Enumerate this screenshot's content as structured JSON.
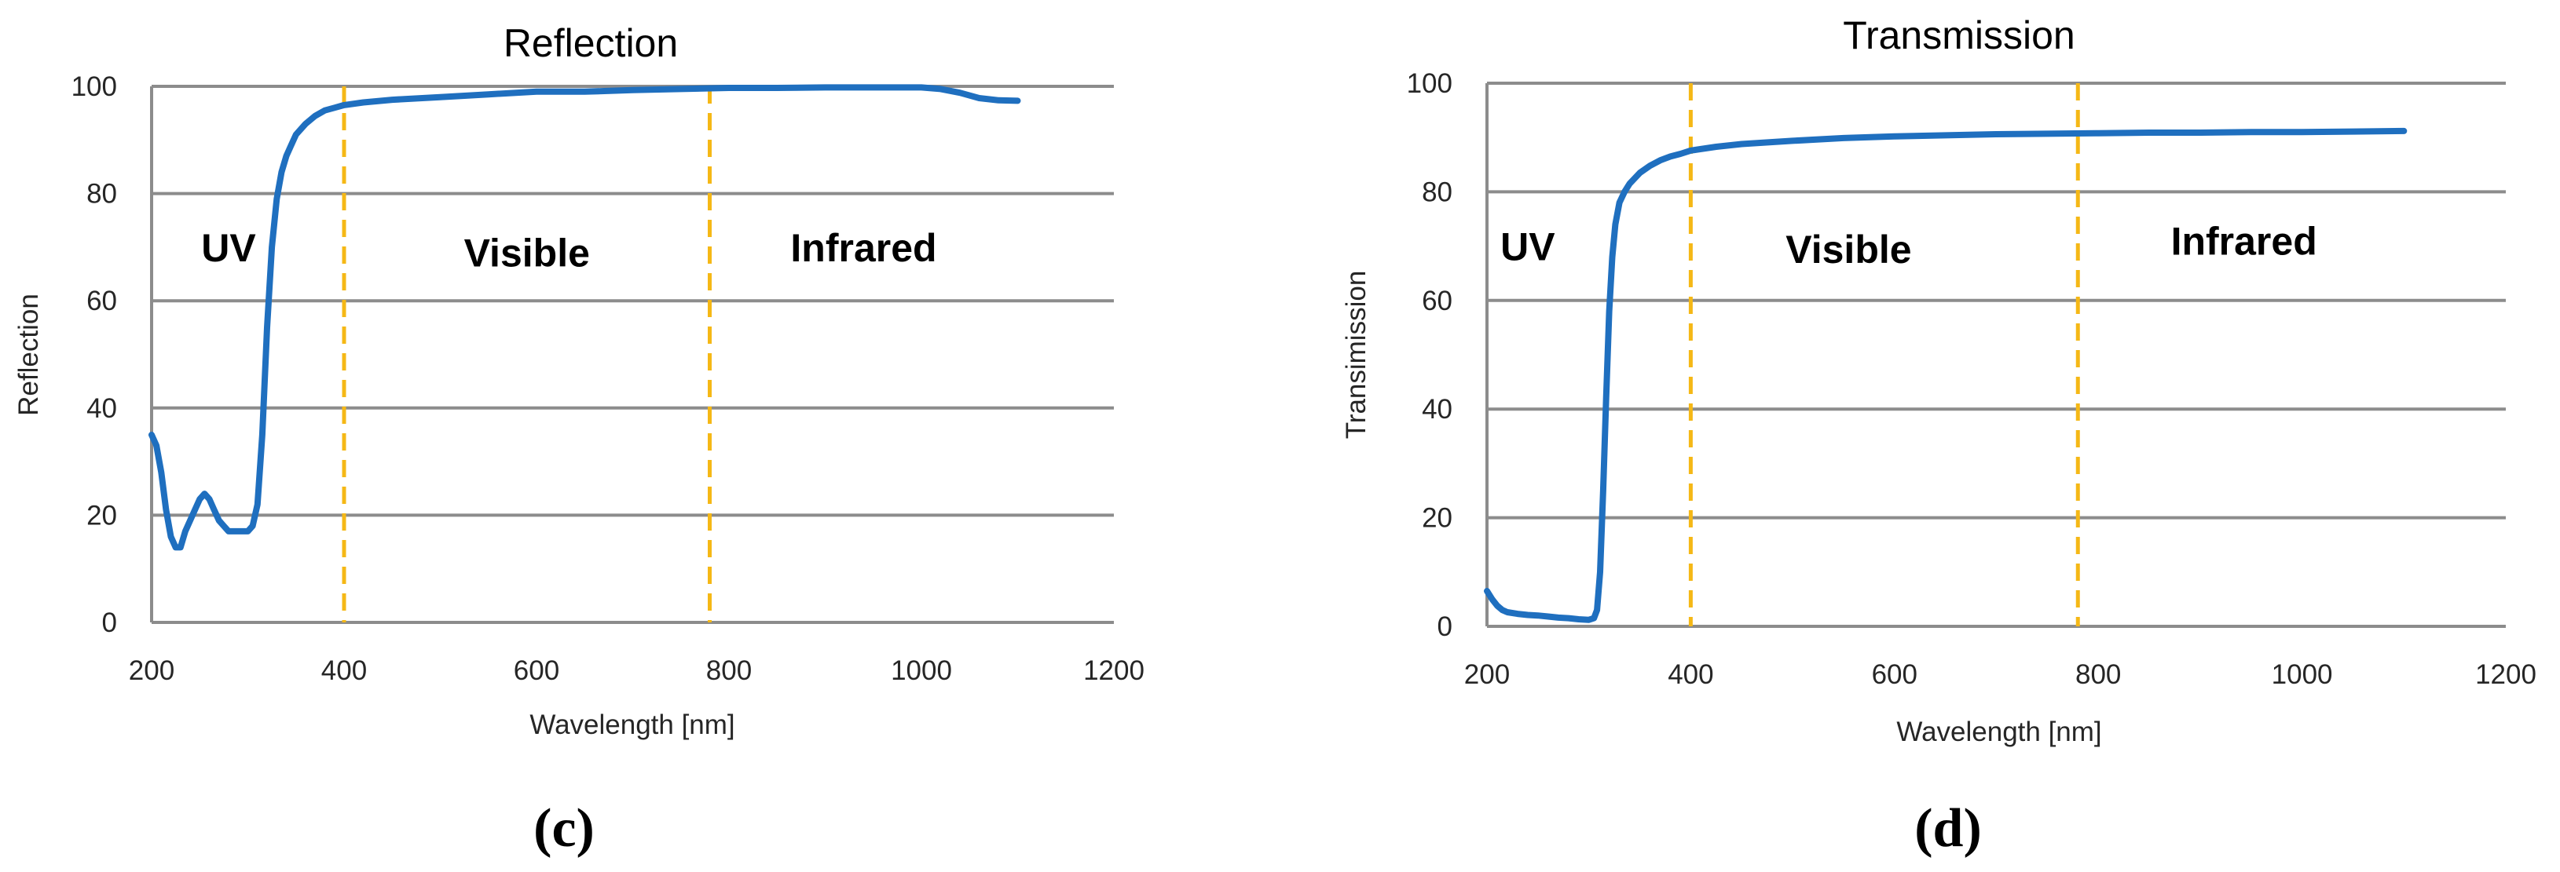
{
  "chart_data": [
    {
      "type": "line",
      "title": "Reflection",
      "xlabel": "Wavelength [nm]",
      "ylabel": "Reflection",
      "xlim": [
        200,
        1200
      ],
      "ylim": [
        0,
        100
      ],
      "xticks": [
        200,
        400,
        600,
        800,
        1000,
        1200
      ],
      "yticks": [
        0,
        20,
        40,
        60,
        80,
        100
      ],
      "grid": "horizontal",
      "colors": {
        "series": "#1f6fbf",
        "dividers": "#f5b816"
      },
      "regions": [
        {
          "label": "UV",
          "x": 280,
          "y": 70
        },
        {
          "label": "Visible",
          "x": 590,
          "y": 69
        },
        {
          "label": "Infrared",
          "x": 940,
          "y": 70
        }
      ],
      "dividers": [
        400,
        780
      ],
      "series": [
        {
          "x": [
            200,
            205,
            210,
            215,
            220,
            225,
            230,
            235,
            240,
            245,
            250,
            255,
            260,
            265,
            270,
            275,
            280,
            285,
            290,
            295,
            300,
            305,
            310,
            315,
            320,
            325,
            330,
            335,
            340,
            345,
            350,
            360,
            370,
            380,
            390,
            400,
            420,
            450,
            500,
            550,
            600,
            650,
            700,
            750,
            800,
            850,
            900,
            950,
            1000,
            1020,
            1040,
            1060,
            1080,
            1100
          ],
          "y": [
            35,
            33,
            28,
            21,
            16,
            14,
            14,
            17,
            19,
            21,
            23,
            24,
            23,
            21,
            19,
            18,
            17,
            17,
            17,
            17,
            17,
            18,
            22,
            35,
            55,
            70,
            79,
            84,
            87,
            89,
            91,
            93,
            94.5,
            95.5,
            96,
            96.5,
            97,
            97.5,
            98,
            98.5,
            99,
            99,
            99.3,
            99.5,
            99.7,
            99.7,
            99.8,
            99.8,
            99.8,
            99.5,
            98.8,
            97.8,
            97.4,
            97.3
          ]
        }
      ]
    },
    {
      "type": "line",
      "title": "Transmission",
      "xlabel": "Wavelength [nm]",
      "ylabel": "Transimission",
      "xlim": [
        200,
        1200
      ],
      "ylim": [
        0,
        100
      ],
      "xticks": [
        200,
        400,
        600,
        800,
        1000,
        1200
      ],
      "yticks": [
        0,
        20,
        40,
        60,
        80,
        100
      ],
      "grid": "horizontal",
      "colors": {
        "series": "#1f6fbf",
        "dividers": "#f5b816"
      },
      "regions": [
        {
          "label": "UV",
          "x": 240,
          "y": 70
        },
        {
          "label": "Visible",
          "x": 555,
          "y": 69.5
        },
        {
          "label": "Infrared",
          "x": 943,
          "y": 71
        }
      ],
      "dividers": [
        400,
        780
      ],
      "series": [
        {
          "x": [
            200,
            205,
            210,
            215,
            220,
            230,
            240,
            250,
            260,
            270,
            280,
            290,
            300,
            305,
            308,
            311,
            314,
            317,
            320,
            323,
            326,
            330,
            335,
            340,
            345,
            350,
            360,
            370,
            380,
            390,
            400,
            425,
            450,
            500,
            550,
            600,
            650,
            700,
            750,
            800,
            850,
            900,
            950,
            1000,
            1050,
            1100
          ],
          "y": [
            6.5,
            5,
            3.8,
            3,
            2.6,
            2.3,
            2.1,
            2,
            1.8,
            1.6,
            1.5,
            1.3,
            1.2,
            1.5,
            3,
            10,
            25,
            42,
            58,
            68,
            74,
            78,
            80,
            81.5,
            82.5,
            83.5,
            84.8,
            85.8,
            86.5,
            87,
            87.6,
            88.3,
            88.8,
            89.4,
            89.9,
            90.2,
            90.4,
            90.6,
            90.7,
            90.8,
            90.9,
            90.9,
            91,
            91,
            91.1,
            91.2
          ]
        }
      ]
    }
  ],
  "panel_labels": [
    "(c)",
    "(d)"
  ]
}
